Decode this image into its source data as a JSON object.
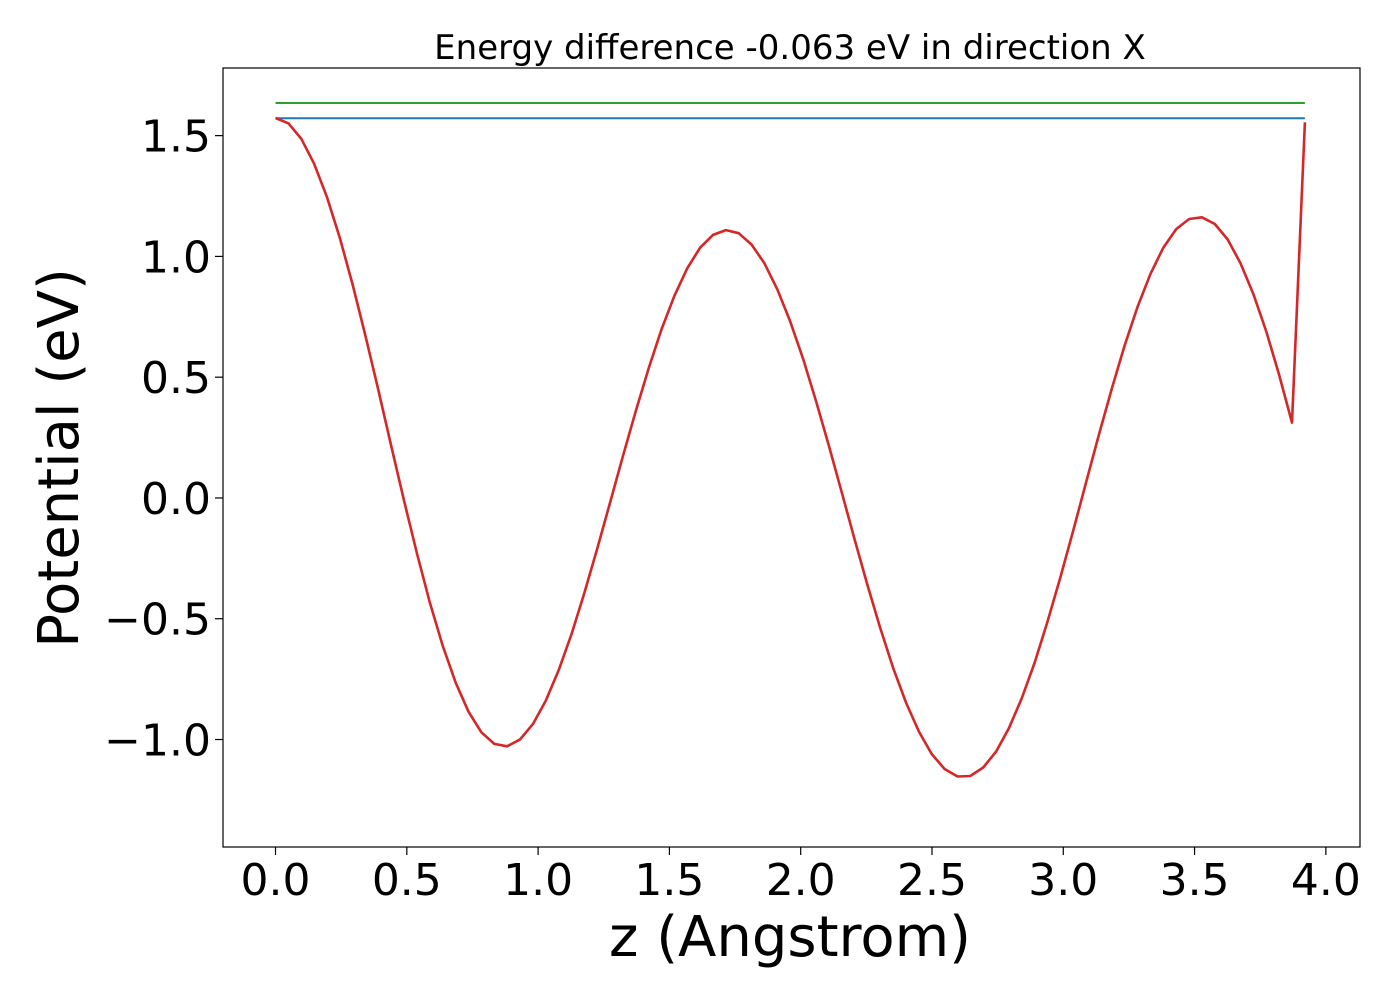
{
  "chart_data": {
    "type": "line",
    "title": "Energy difference -0.063 eV in direction X",
    "xlabel": "z (Angstrom)",
    "ylabel": "Potential (eV)",
    "xlim": [
      -0.2,
      4.13
    ],
    "ylim": [
      -1.445,
      1.78
    ],
    "xticks": [
      0.0,
      0.5,
      1.0,
      1.5,
      2.0,
      2.5,
      3.0,
      3.5,
      4.0
    ],
    "xtick_labels": [
      "0.0",
      "0.5",
      "1.0",
      "1.5",
      "2.0",
      "2.5",
      "3.0",
      "3.5",
      "4.0"
    ],
    "yticks": [
      -1.0,
      -0.5,
      0.0,
      0.5,
      1.0,
      1.5
    ],
    "ytick_labels": [
      "−1.0",
      "−0.5",
      "0.0",
      "0.5",
      "1.0",
      "1.5"
    ],
    "grid": false,
    "legend": "none",
    "series": [
      {
        "color": "#2ca02c",
        "style": "horizontal",
        "x": [
          0.0,
          3.92
        ],
        "y": [
          1.635,
          1.635
        ]
      },
      {
        "color": "#1f77b4",
        "style": "horizontal",
        "x": [
          0.0,
          3.92
        ],
        "y": [
          1.572,
          1.572
        ]
      },
      {
        "color": "#d62728",
        "style": "curve",
        "x": [
          0.0,
          0.049,
          0.098,
          0.147,
          0.196,
          0.245,
          0.294,
          0.343,
          0.392,
          0.441,
          0.49,
          0.539,
          0.588,
          0.637,
          0.686,
          0.735,
          0.784,
          0.833,
          0.882,
          0.931,
          0.98,
          1.029,
          1.078,
          1.127,
          1.176,
          1.225,
          1.274,
          1.323,
          1.372,
          1.421,
          1.47,
          1.519,
          1.568,
          1.617,
          1.666,
          1.715,
          1.764,
          1.813,
          1.862,
          1.911,
          1.96,
          2.009,
          2.058,
          2.107,
          2.156,
          2.205,
          2.254,
          2.303,
          2.352,
          2.401,
          2.45,
          2.499,
          2.548,
          2.597,
          2.646,
          2.695,
          2.744,
          2.793,
          2.842,
          2.891,
          2.94,
          2.989,
          3.038,
          3.087,
          3.136,
          3.185,
          3.234,
          3.283,
          3.332,
          3.381,
          3.43,
          3.479,
          3.528,
          3.577,
          3.626,
          3.675,
          3.724,
          3.773,
          3.822,
          3.871,
          3.92
        ],
        "y": [
          1.573,
          1.551,
          1.487,
          1.384,
          1.245,
          1.076,
          0.882,
          0.669,
          0.444,
          0.214,
          -0.014,
          -0.232,
          -0.434,
          -0.613,
          -0.765,
          -0.885,
          -0.97,
          -1.018,
          -1.028,
          -1.0,
          -0.936,
          -0.84,
          -0.714,
          -0.564,
          -0.394,
          -0.21,
          -0.019,
          0.173,
          0.36,
          0.537,
          0.698,
          0.837,
          0.951,
          1.036,
          1.089,
          1.109,
          1.096,
          1.049,
          0.971,
          0.864,
          0.731,
          0.576,
          0.403,
          0.217,
          0.024,
          -0.17,
          -0.36,
          -0.539,
          -0.703,
          -0.847,
          -0.967,
          -1.06,
          -1.122,
          -1.153,
          -1.151,
          -1.116,
          -1.05,
          -0.953,
          -0.829,
          -0.681,
          -0.512,
          -0.328,
          -0.134,
          0.065,
          0.263,
          0.454,
          0.632,
          0.792,
          0.928,
          1.036,
          1.113,
          1.155,
          1.162,
          1.134,
          1.07,
          0.972,
          0.844,
          0.689,
          0.51,
          0.312,
          1.555
        ]
      }
    ]
  }
}
